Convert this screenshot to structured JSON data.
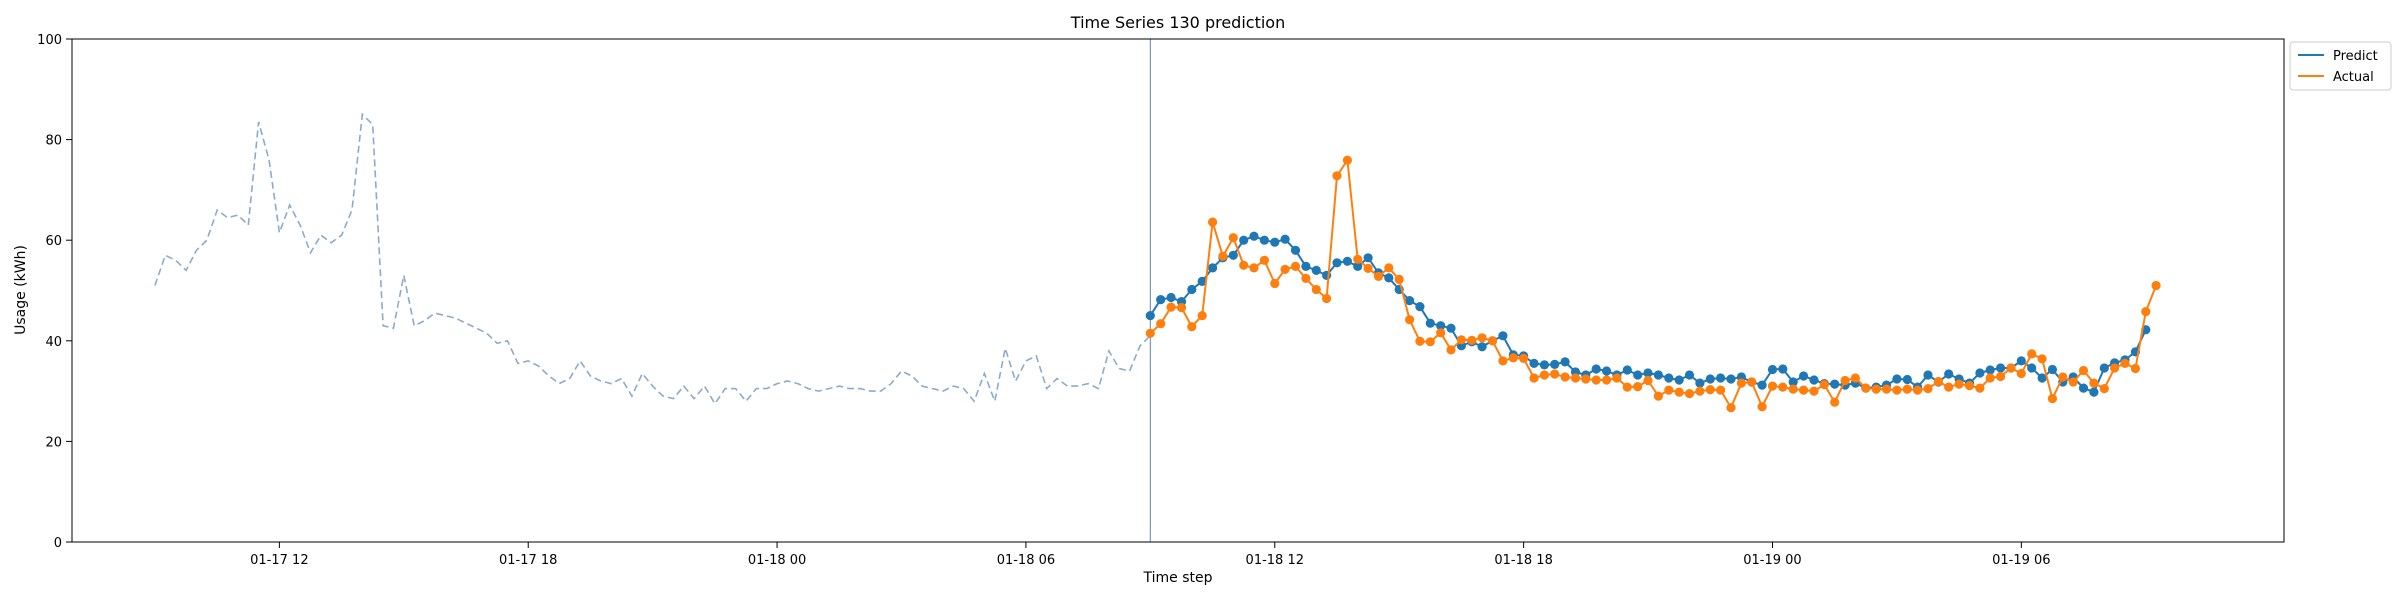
{
  "chart_data": {
    "type": "line",
    "title": "Time Series 130 prediction",
    "xlabel": "Time step",
    "ylabel": "Usage (kWh)",
    "ylim": [
      0,
      100
    ],
    "yticks": [
      0,
      20,
      40,
      60,
      80,
      100
    ],
    "xlim": [
      "2021-01-17 07:00",
      "2021-01-19 12:20"
    ],
    "xticks": [
      {
        "t": "2021-01-17 12:00",
        "label": "01-17 12"
      },
      {
        "t": "2021-01-17 18:00",
        "label": "01-17 18"
      },
      {
        "t": "2021-01-18 00:00",
        "label": "01-18 00"
      },
      {
        "t": "2021-01-18 06:00",
        "label": "01-18 06"
      },
      {
        "t": "2021-01-18 12:00",
        "label": "01-18 12"
      },
      {
        "t": "2021-01-18 18:00",
        "label": "01-18 18"
      },
      {
        "t": "2021-01-19 00:00",
        "label": "01-19 00"
      },
      {
        "t": "2021-01-19 06:00",
        "label": "01-19 06"
      }
    ],
    "legend_position": "upper right, outside plot",
    "grid": false,
    "forecast_start": "2021-01-18 09:00",
    "colors": {
      "history": "#8eaacb",
      "predict": "#1f77b4",
      "actual": "#ff7f0e",
      "divider": "#7b93c4"
    },
    "history": {
      "start": "2021-01-17 09:00",
      "step_minutes": 15,
      "values": [
        51,
        57,
        56,
        54,
        58,
        60,
        66,
        64.5,
        65,
        63,
        83.5,
        76,
        61.5,
        67,
        63,
        57.5,
        61,
        59.5,
        61,
        66,
        85,
        83,
        43,
        42.5,
        53,
        43,
        44,
        45.5,
        45,
        44.5,
        43.5,
        42.5,
        41.5,
        39.5,
        40,
        35.5,
        36,
        35,
        33,
        31.5,
        32.5,
        36,
        33,
        32,
        31.5,
        32.5,
        29,
        33.5,
        31,
        29,
        28.5,
        31,
        28.5,
        31,
        27.5,
        30.5,
        30.5,
        28,
        30.5,
        30.5,
        31.5,
        32,
        31.5,
        30.5,
        30,
        30.5,
        31,
        30.5,
        30.5,
        30,
        30,
        31.5,
        34,
        33,
        31,
        30.5,
        30,
        31,
        30.5,
        28,
        33.5,
        28,
        38.5,
        32,
        36,
        37,
        30.5,
        32.5,
        31,
        31,
        31.5,
        30.5,
        38,
        34.5,
        34,
        39,
        41
      ]
    },
    "series": [
      {
        "name": "Predict",
        "start": "2021-01-18 09:00",
        "step_minutes": 15,
        "values": [
          45,
          48.2,
          48.6,
          47.8,
          50.2,
          51.8,
          54.5,
          56.5,
          57,
          60,
          60.8,
          60,
          59.6,
          60.2,
          58,
          54.8,
          54,
          53,
          55.5,
          55.8,
          54.8,
          56.5,
          53.5,
          52.5,
          50.2,
          48,
          46.8,
          43.5,
          43,
          42.5,
          39,
          39.8,
          38.8,
          40,
          41,
          37.2,
          37,
          35.5,
          35.2,
          35.3,
          35.8,
          33.8,
          33.2,
          34.4,
          34,
          33.2,
          34.2,
          33.2,
          33.6,
          33.2,
          32.6,
          32.2,
          33.2,
          31.6,
          32.4,
          32.6,
          32.4,
          32.8,
          31.8,
          31.2,
          34.3,
          34.4,
          31.8,
          33,
          32.2,
          31.5,
          31.4,
          31.2,
          31.6,
          30.6,
          30.8,
          31.2,
          32.4,
          32.3,
          30.8,
          33.2,
          31.8,
          33.4,
          32.4,
          31.6,
          33.6,
          34.2,
          34.6,
          34.6,
          36,
          34.6,
          32.6,
          34.3,
          31.8,
          32.8,
          30.6,
          29.8,
          34.6,
          35.6,
          36.2,
          37.8,
          42.2
        ]
      },
      {
        "name": "Actual",
        "start": "2021-01-18 09:00",
        "step_minutes": 15,
        "values": [
          41.5,
          43.4,
          46.7,
          46.6,
          42.8,
          45,
          63.6,
          56.8,
          60.5,
          55,
          54.5,
          56,
          51.4,
          54.2,
          54.8,
          52.4,
          50.2,
          48.4,
          72.8,
          75.9,
          56.2,
          54.4,
          52.8,
          54.5,
          52.2,
          44.2,
          39.9,
          39.8,
          41.6,
          38.2,
          40.2,
          40.1,
          40.6,
          40,
          36,
          36.6,
          36.5,
          32.6,
          33.2,
          33.4,
          32.8,
          32.6,
          32.4,
          32.2,
          32.2,
          32.6,
          30.8,
          30.9,
          32.1,
          29,
          30.2,
          29.8,
          29.5,
          30,
          30.3,
          30.2,
          26.7,
          31.6,
          31.8,
          26.9,
          31,
          30.8,
          30.4,
          30.2,
          30,
          31.3,
          27.8,
          32.1,
          32.6,
          30.6,
          30.4,
          30.4,
          30.2,
          30.4,
          30.2,
          30.5,
          31.9,
          30.8,
          31.4,
          31.1,
          30.6,
          32.6,
          32.9,
          34.6,
          33.5,
          37.4,
          36.4,
          28.5,
          32.8,
          31.8,
          34.1,
          31.6,
          30.5,
          34.6,
          35.5,
          34.5,
          45.8,
          51
        ]
      }
    ]
  }
}
